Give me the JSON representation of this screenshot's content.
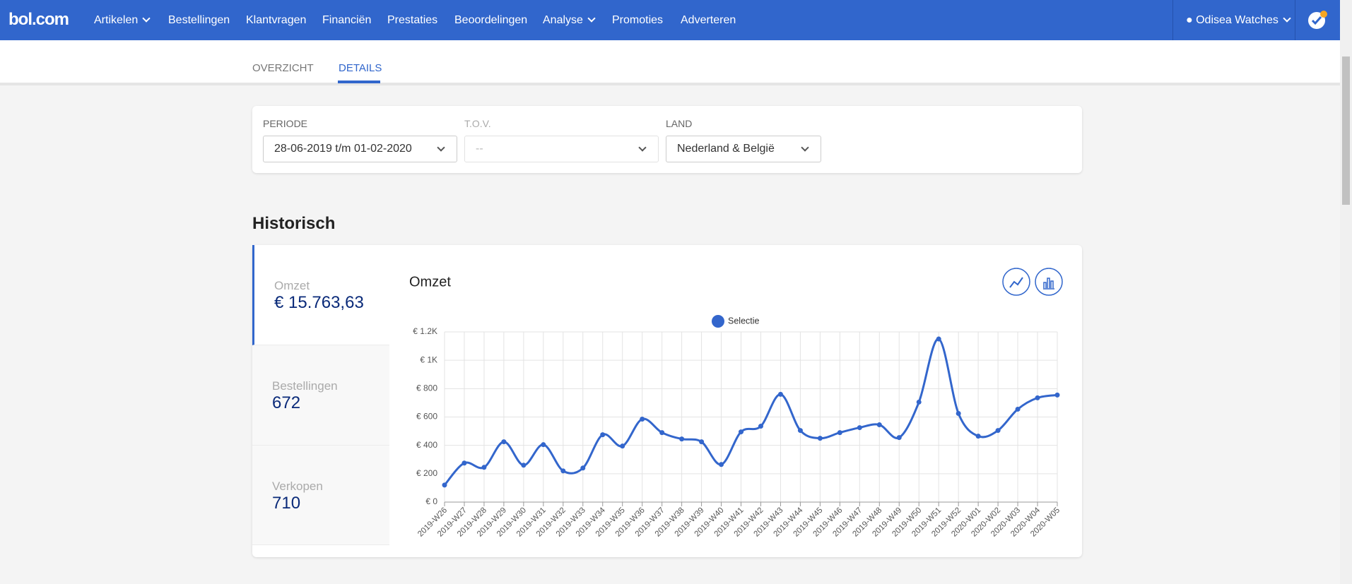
{
  "nav": {
    "logo": "bol.com",
    "items": [
      "Artikelen",
      "Bestellingen",
      "Klantvragen",
      "Financiën",
      "Prestaties",
      "Beoordelingen",
      "Analyse",
      "Promoties",
      "Adverteren"
    ],
    "user": "Odisea Watches"
  },
  "tabs": [
    "OVERZICHT",
    "DETAILS"
  ],
  "filters": [
    {
      "label": "PERIODE",
      "value": "28-06-2019 t/m 01-02-2020"
    },
    {
      "label": "T.O.V.",
      "value": "--"
    },
    {
      "label": "LAND",
      "value": "Nederland & België"
    }
  ],
  "section_title": "Historisch",
  "metrics": [
    {
      "label": "Omzet",
      "value": "€ 15.763,63"
    },
    {
      "label": "Bestellingen",
      "value": 672
    },
    {
      "label": "Verkopen",
      "value": 710
    }
  ],
  "chart_data": {
    "type": "line",
    "title": "Omzet",
    "categories": [
      "2019-W26",
      "2019-W27",
      "2019-W28",
      "2019-W29",
      "2019-W30",
      "2019-W31",
      "2019-W32",
      "2019-W33",
      "2019-W34",
      "2019-W35",
      "2019-W36",
      "2019-W37",
      "2019-W38",
      "2019-W39",
      "2019-W40",
      "2019-W41",
      "2019-W42",
      "2019-W43",
      "2019-W44",
      "2019-W45",
      "2019-W46",
      "2019-W47",
      "2019-W48",
      "2019-W49",
      "2019-W50",
      "2019-W51",
      "2019-W52",
      "2020-W01",
      "2020-W02",
      "2020-W03",
      "2020-W04",
      "2020-W05"
    ],
    "series": [
      {
        "name": "Selectie",
        "color": "#3366cc",
        "values": [
          120,
          275,
          245,
          425,
          260,
          405,
          220,
          240,
          475,
          395,
          585,
          490,
          445,
          425,
          265,
          495,
          535,
          760,
          505,
          450,
          490,
          525,
          545,
          455,
          705,
          1150,
          625,
          465,
          505,
          655,
          735,
          755
        ]
      }
    ],
    "ylim": [
      0,
      1200
    ],
    "yticks": [
      {
        "value": 0,
        "label": "€ 0"
      },
      {
        "value": 200,
        "label": "€ 200"
      },
      {
        "value": 400,
        "label": "€ 400"
      },
      {
        "value": 600,
        "label": "€ 600"
      },
      {
        "value": 800,
        "label": "€ 800"
      },
      {
        "value": 1000,
        "label": "€ 1K"
      },
      {
        "value": 1200,
        "label": "€ 1.2K"
      }
    ],
    "grid": true
  }
}
